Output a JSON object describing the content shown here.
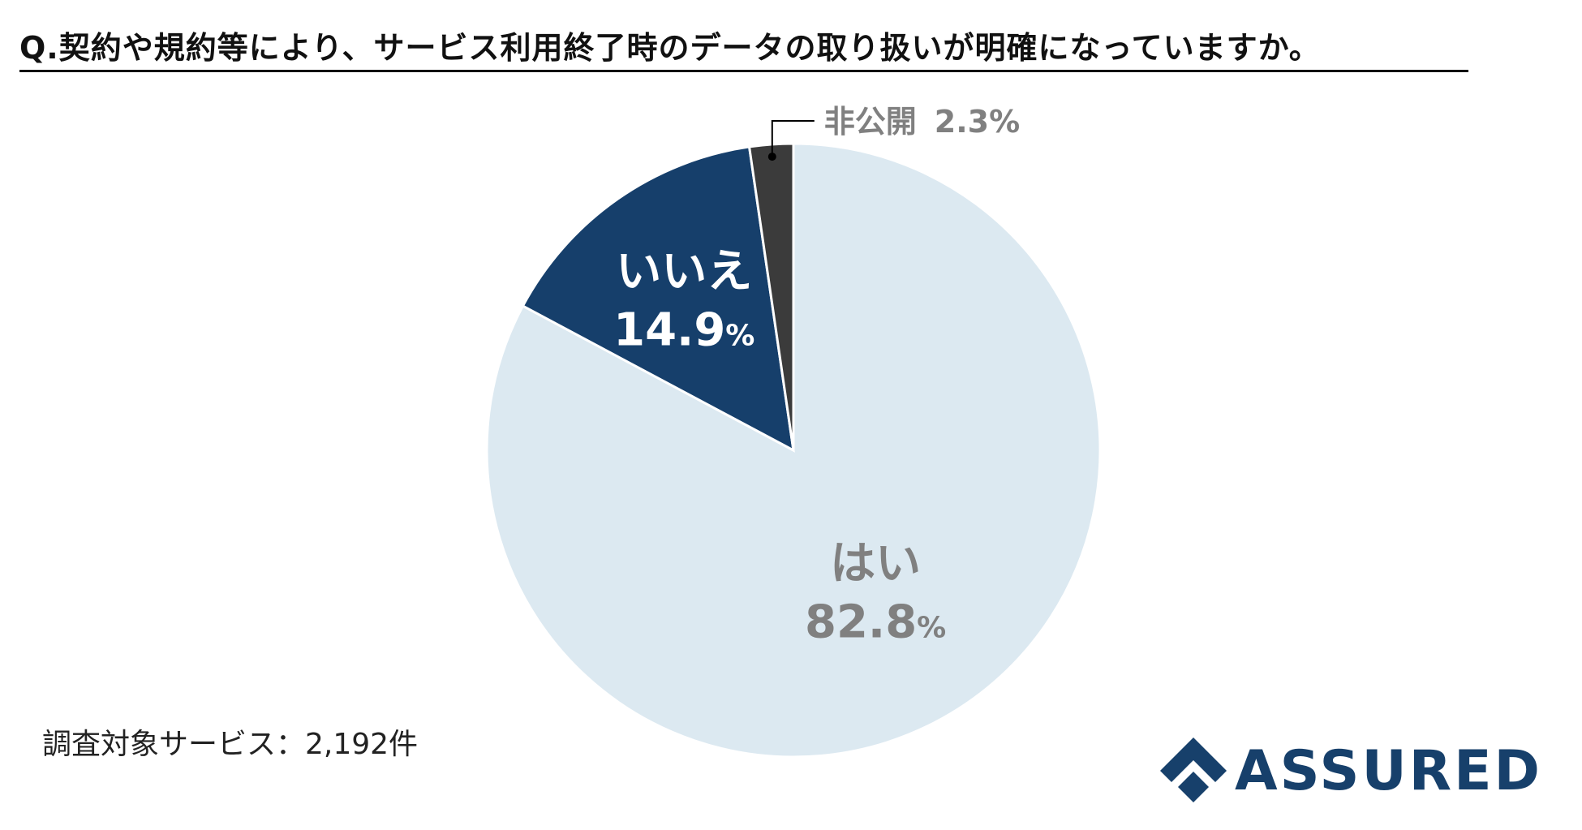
{
  "question": "Q.契約や規約等により、サービス利用終了時のデータの取り扱いが明確になっていますか。",
  "footnote": "調査対象サービス：2,192件",
  "logo": {
    "text": "ASSURED",
    "color": "#17406b",
    "icon": "assured-logo-icon"
  },
  "chart_data": {
    "type": "pie",
    "title": "Q.契約や規約等により、サービス利用終了時のデータの取り扱いが明確になっていますか。",
    "start_angle_deg": 0,
    "direction": "clockwise",
    "slices": [
      {
        "label": "はい",
        "value": 82.8,
        "value_text": "82.8",
        "unit": "%",
        "color": "#dce9f1",
        "label_color": "#808080"
      },
      {
        "label": "いいえ",
        "value": 14.9,
        "value_text": "14.9",
        "unit": "%",
        "color": "#163f6b",
        "label_color": "#ffffff"
      },
      {
        "label": "非公開",
        "value": 2.3,
        "value_text": "2.3",
        "unit": "%",
        "color": "#3b3b3b",
        "label_color": "#808080",
        "callout": true
      }
    ]
  }
}
